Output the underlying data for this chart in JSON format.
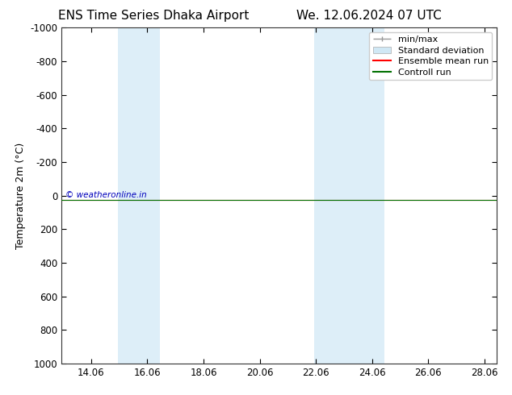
{
  "title_left": "ENS Time Series Dhaka Airport",
  "title_right": "We. 12.06.2024 07 UTC",
  "ylabel": "Temperature 2m (°C)",
  "watermark": "© weatheronline.in",
  "xlim_start": 13.0,
  "xlim_end": 28.5,
  "ylim_bottom": 1000,
  "ylim_top": -1000,
  "yticks": [
    -1000,
    -800,
    -600,
    -400,
    -200,
    0,
    200,
    400,
    600,
    800,
    1000
  ],
  "xtick_labels": [
    "14.06",
    "16.06",
    "18.06",
    "20.06",
    "22.06",
    "24.06",
    "26.06",
    "28.06"
  ],
  "xtick_positions": [
    14.06,
    16.06,
    18.06,
    20.06,
    22.06,
    24.06,
    26.06,
    28.06
  ],
  "shaded_bands": [
    {
      "x_start": 15.0,
      "x_end": 16.5
    },
    {
      "x_start": 22.0,
      "x_end": 24.5
    }
  ],
  "control_run_y": 25,
  "ensemble_mean_y": 25,
  "bg_color": "#ffffff",
  "shade_color": "#ddeef8",
  "control_run_color": "#007000",
  "ensemble_mean_color": "#ff0000",
  "minmax_color": "#999999",
  "stddev_color": "#d0e8f5",
  "legend_minmax_label": "min/max",
  "legend_stddev_label": "Standard deviation",
  "legend_ensemble_label": "Ensemble mean run",
  "legend_control_label": "Controll run",
  "watermark_color": "#0000bb",
  "title_fontsize": 11,
  "axis_fontsize": 8.5,
  "label_fontsize": 9,
  "legend_fontsize": 8
}
